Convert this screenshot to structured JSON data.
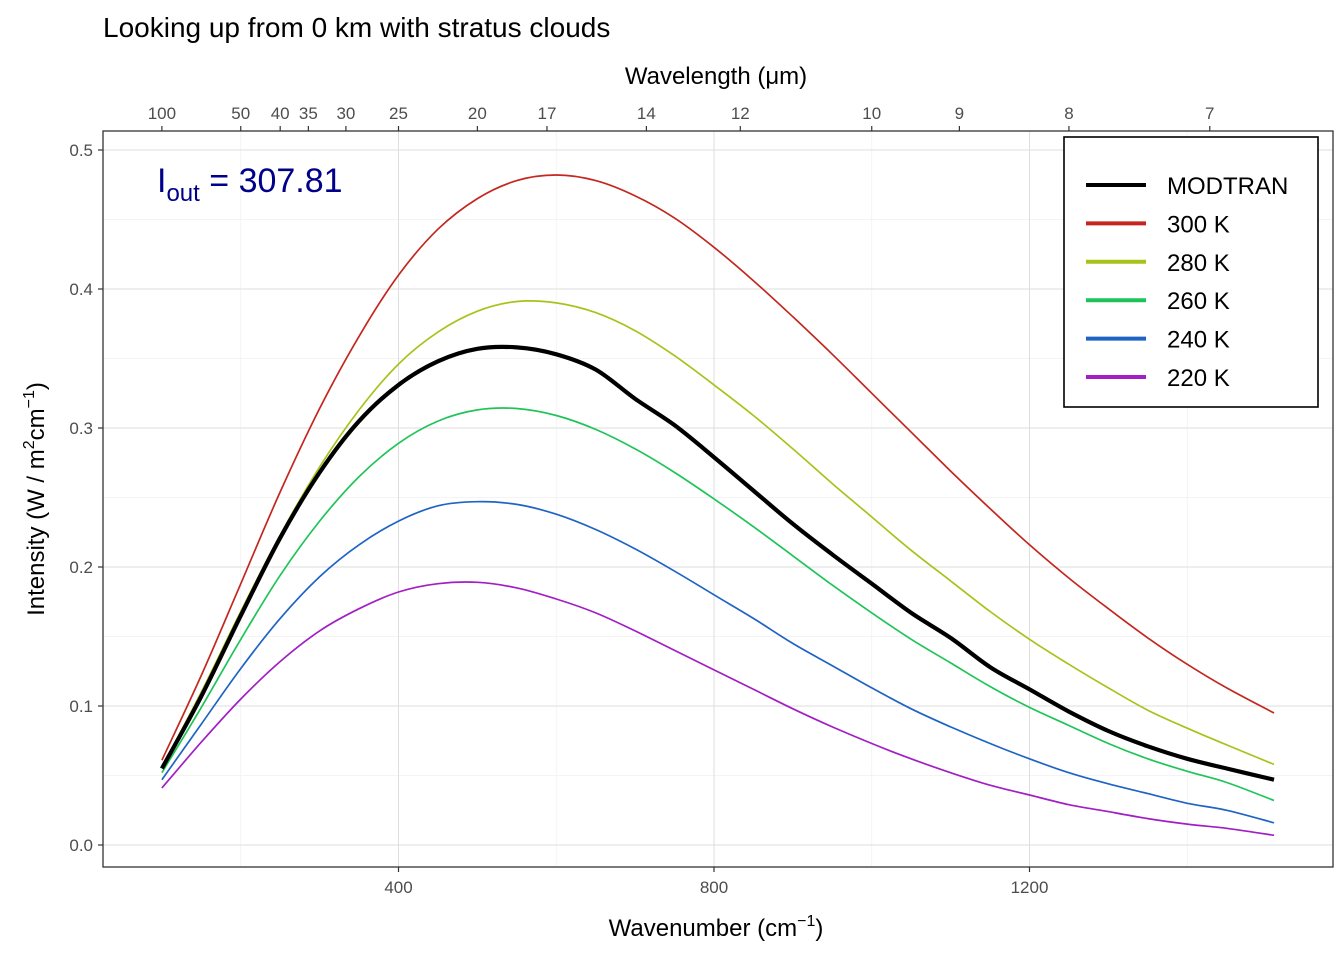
{
  "chart_data": {
    "type": "line",
    "title": "Looking up from 0 km with stratus clouds",
    "xlabel": "Wavenumber (cm",
    "xlabel_sup": "−1",
    "xlabel_close": ")",
    "ylabel": "Intensity (W / m",
    "ylabel_sup1": "2",
    "ylabel_mid": "cm",
    "ylabel_sup2": "−1",
    "ylabel_close": ")",
    "x2label": "Wavelength (μm)",
    "xlim": [
      100,
      1500
    ],
    "ylim": [
      0,
      0.5
    ],
    "x_ticks": [
      400,
      800,
      1200
    ],
    "y_ticks": [
      0.0,
      0.1,
      0.2,
      0.3,
      0.4,
      0.5
    ],
    "y_tick_labels": [
      "0.0",
      "0.1",
      "0.2",
      "0.3",
      "0.4",
      "0.5"
    ],
    "x2_ticks": [
      100,
      50,
      40,
      35,
      30,
      25,
      20,
      17,
      14,
      12,
      10,
      9,
      8,
      7
    ],
    "grid": true,
    "legend_position": "top-right",
    "annotation": {
      "main": "I",
      "sub": "out",
      "eq": " = 307.81",
      "color": "#00008B"
    },
    "series": [
      {
        "name": "MODTRAN",
        "color": "#000000",
        "emphasis": true,
        "points": [
          [
            100,
            0.055
          ],
          [
            150,
            0.107
          ],
          [
            200,
            0.165
          ],
          [
            250,
            0.221
          ],
          [
            300,
            0.268
          ],
          [
            350,
            0.305
          ],
          [
            400,
            0.331
          ],
          [
            450,
            0.348
          ],
          [
            500,
            0.357
          ],
          [
            550,
            0.358
          ],
          [
            600,
            0.353
          ],
          [
            650,
            0.342
          ],
          [
            700,
            0.321
          ],
          [
            750,
            0.302
          ],
          [
            800,
            0.279
          ],
          [
            850,
            0.255
          ],
          [
            900,
            0.231
          ],
          [
            950,
            0.209
          ],
          [
            1000,
            0.188
          ],
          [
            1050,
            0.167
          ],
          [
            1100,
            0.149
          ],
          [
            1150,
            0.128
          ],
          [
            1200,
            0.112
          ],
          [
            1250,
            0.096
          ],
          [
            1300,
            0.082
          ],
          [
            1350,
            0.071
          ],
          [
            1400,
            0.062
          ],
          [
            1450,
            0.055
          ],
          [
            1510,
            0.047
          ]
        ]
      },
      {
        "name": "300 K",
        "color": "#C3271F",
        "points": [
          [
            100,
            0.061
          ],
          [
            150,
            0.122
          ],
          [
            200,
            0.188
          ],
          [
            250,
            0.254
          ],
          [
            300,
            0.314
          ],
          [
            350,
            0.366
          ],
          [
            400,
            0.41
          ],
          [
            450,
            0.443
          ],
          [
            500,
            0.465
          ],
          [
            550,
            0.478
          ],
          [
            600,
            0.482
          ],
          [
            650,
            0.478
          ],
          [
            700,
            0.467
          ],
          [
            750,
            0.451
          ],
          [
            800,
            0.43
          ],
          [
            850,
            0.406
          ],
          [
            900,
            0.38
          ],
          [
            950,
            0.353
          ],
          [
            1000,
            0.325
          ],
          [
            1050,
            0.297
          ],
          [
            1100,
            0.269
          ],
          [
            1150,
            0.242
          ],
          [
            1200,
            0.216
          ],
          [
            1250,
            0.192
          ],
          [
            1300,
            0.17
          ],
          [
            1350,
            0.149
          ],
          [
            1400,
            0.13
          ],
          [
            1450,
            0.113
          ],
          [
            1510,
            0.095
          ]
        ]
      },
      {
        "name": "280 K",
        "color": "#A9C21A",
        "points": [
          [
            100,
            0.056
          ],
          [
            150,
            0.11
          ],
          [
            200,
            0.168
          ],
          [
            250,
            0.223
          ],
          [
            300,
            0.272
          ],
          [
            350,
            0.313
          ],
          [
            400,
            0.346
          ],
          [
            450,
            0.369
          ],
          [
            500,
            0.384
          ],
          [
            550,
            0.391
          ],
          [
            600,
            0.39
          ],
          [
            650,
            0.383
          ],
          [
            700,
            0.37
          ],
          [
            750,
            0.352
          ],
          [
            800,
            0.331
          ],
          [
            850,
            0.309
          ],
          [
            900,
            0.285
          ],
          [
            950,
            0.26
          ],
          [
            1000,
            0.236
          ],
          [
            1050,
            0.212
          ],
          [
            1100,
            0.19
          ],
          [
            1150,
            0.168
          ],
          [
            1200,
            0.148
          ],
          [
            1250,
            0.13
          ],
          [
            1300,
            0.113
          ],
          [
            1350,
            0.097
          ],
          [
            1400,
            0.084
          ],
          [
            1450,
            0.072
          ],
          [
            1510,
            0.058
          ]
        ]
      },
      {
        "name": "260 K",
        "color": "#1FC459",
        "points": [
          [
            100,
            0.052
          ],
          [
            150,
            0.099
          ],
          [
            200,
            0.148
          ],
          [
            250,
            0.194
          ],
          [
            300,
            0.233
          ],
          [
            350,
            0.265
          ],
          [
            400,
            0.289
          ],
          [
            450,
            0.305
          ],
          [
            500,
            0.313
          ],
          [
            550,
            0.314
          ],
          [
            600,
            0.309
          ],
          [
            650,
            0.299
          ],
          [
            700,
            0.285
          ],
          [
            750,
            0.268
          ],
          [
            800,
            0.249
          ],
          [
            850,
            0.229
          ],
          [
            900,
            0.208
          ],
          [
            950,
            0.187
          ],
          [
            1000,
            0.167
          ],
          [
            1050,
            0.148
          ],
          [
            1100,
            0.131
          ],
          [
            1150,
            0.114
          ],
          [
            1200,
            0.099
          ],
          [
            1250,
            0.086
          ],
          [
            1300,
            0.073
          ],
          [
            1350,
            0.062
          ],
          [
            1400,
            0.053
          ],
          [
            1450,
            0.045
          ],
          [
            1510,
            0.032
          ]
        ]
      },
      {
        "name": "240 K",
        "color": "#1F64C4",
        "points": [
          [
            100,
            0.047
          ],
          [
            150,
            0.087
          ],
          [
            200,
            0.127
          ],
          [
            250,
            0.163
          ],
          [
            300,
            0.193
          ],
          [
            350,
            0.216
          ],
          [
            400,
            0.233
          ],
          [
            450,
            0.244
          ],
          [
            500,
            0.247
          ],
          [
            550,
            0.245
          ],
          [
            600,
            0.238
          ],
          [
            650,
            0.227
          ],
          [
            700,
            0.213
          ],
          [
            750,
            0.197
          ],
          [
            800,
            0.18
          ],
          [
            850,
            0.163
          ],
          [
            900,
            0.145
          ],
          [
            950,
            0.129
          ],
          [
            1000,
            0.113
          ],
          [
            1050,
            0.098
          ],
          [
            1100,
            0.085
          ],
          [
            1150,
            0.073
          ],
          [
            1200,
            0.062
          ],
          [
            1250,
            0.052
          ],
          [
            1300,
            0.044
          ],
          [
            1350,
            0.037
          ],
          [
            1400,
            0.03
          ],
          [
            1450,
            0.025
          ],
          [
            1510,
            0.016
          ]
        ]
      },
      {
        "name": "220 K",
        "color": "#A11FC4",
        "points": [
          [
            100,
            0.041
          ],
          [
            150,
            0.074
          ],
          [
            200,
            0.105
          ],
          [
            250,
            0.132
          ],
          [
            300,
            0.154
          ],
          [
            350,
            0.17
          ],
          [
            400,
            0.182
          ],
          [
            450,
            0.188
          ],
          [
            500,
            0.189
          ],
          [
            550,
            0.185
          ],
          [
            600,
            0.177
          ],
          [
            650,
            0.167
          ],
          [
            700,
            0.154
          ],
          [
            750,
            0.14
          ],
          [
            800,
            0.126
          ],
          [
            850,
            0.112
          ],
          [
            900,
            0.098
          ],
          [
            950,
            0.085
          ],
          [
            1000,
            0.073
          ],
          [
            1050,
            0.062
          ],
          [
            1100,
            0.052
          ],
          [
            1150,
            0.043
          ],
          [
            1200,
            0.036
          ],
          [
            1250,
            0.029
          ],
          [
            1300,
            0.024
          ],
          [
            1350,
            0.019
          ],
          [
            1400,
            0.015
          ],
          [
            1450,
            0.012
          ],
          [
            1510,
            0.007
          ]
        ]
      }
    ]
  }
}
